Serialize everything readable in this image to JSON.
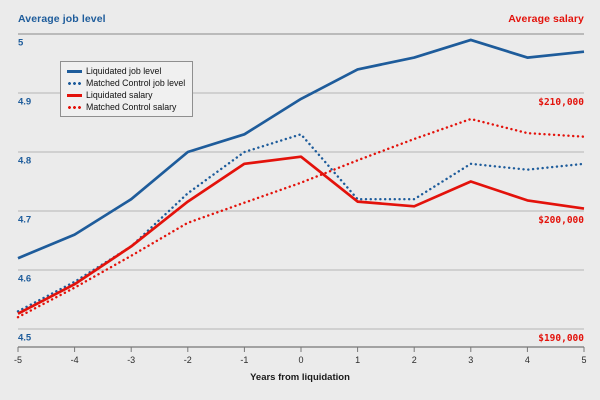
{
  "colors": {
    "background": "#ebebeb",
    "blue": "#1e5c9b",
    "red": "#e3120b",
    "gridline": "#b4b4b4",
    "top_rule": "#8a8a8a",
    "axis_line": "#777777",
    "text": "#1a1a1a"
  },
  "chart_data": {
    "type": "line",
    "x": [
      -5,
      -4,
      -3,
      -2,
      -1,
      0,
      1,
      2,
      3,
      4,
      5
    ],
    "x_axis": {
      "title": "Years from liquidation",
      "ticks": [
        "-5",
        "-4",
        "-3",
        "-2",
        "-1",
        "0",
        "1",
        "2",
        "3",
        "4",
        "5"
      ],
      "range": [
        -5,
        5
      ]
    },
    "y_axis_left": {
      "title": "Average job level",
      "ticks": [
        {
          "label": "5",
          "value": 5.0
        },
        {
          "label": "4.9",
          "value": 4.9
        },
        {
          "label": "4.8",
          "value": 4.8
        },
        {
          "label": "4.7",
          "value": 4.7
        },
        {
          "label": "4.6",
          "value": 4.6
        },
        {
          "label": "4.5",
          "value": 4.5
        }
      ],
      "range": [
        4.5,
        5.0
      ],
      "grid": true
    },
    "y_axis_right": {
      "title": "Average salary",
      "ticks": [
        {
          "label": "$210,000",
          "value": 210000
        },
        {
          "label": "$200,000",
          "value": 200000
        },
        {
          "label": "$190,000",
          "value": 190000
        }
      ],
      "range": [
        190000,
        215000
      ],
      "mapping": "salary $190,000 aligns with level 4.5; $10,000 per 0.2 level units"
    },
    "legend_position": "upper-left",
    "series": [
      {
        "name": "Liquidated job level",
        "axis": "left",
        "style": "solid",
        "color": "#1e5c9b",
        "values": [
          4.62,
          4.66,
          4.72,
          4.8,
          4.83,
          4.89,
          4.94,
          4.96,
          4.99,
          4.96,
          4.97
        ]
      },
      {
        "name": "Matched Control job level",
        "axis": "left",
        "style": "dotted",
        "color": "#1e5c9b",
        "values": [
          4.53,
          4.58,
          4.64,
          4.73,
          4.8,
          4.83,
          4.72,
          4.72,
          4.78,
          4.77,
          4.78
        ]
      },
      {
        "name": "Liquidated salary",
        "axis": "right",
        "style": "solid",
        "color": "#e3120b",
        "values": [
          191300,
          193800,
          197000,
          200800,
          204000,
          204600,
          200800,
          200400,
          202500,
          200900,
          200200
        ]
      },
      {
        "name": "Matched Control salary",
        "axis": "right",
        "style": "dotted",
        "color": "#e3120b",
        "values": [
          191000,
          193500,
          196200,
          199000,
          200700,
          202400,
          204300,
          206100,
          207800,
          206600,
          206300
        ]
      }
    ]
  }
}
